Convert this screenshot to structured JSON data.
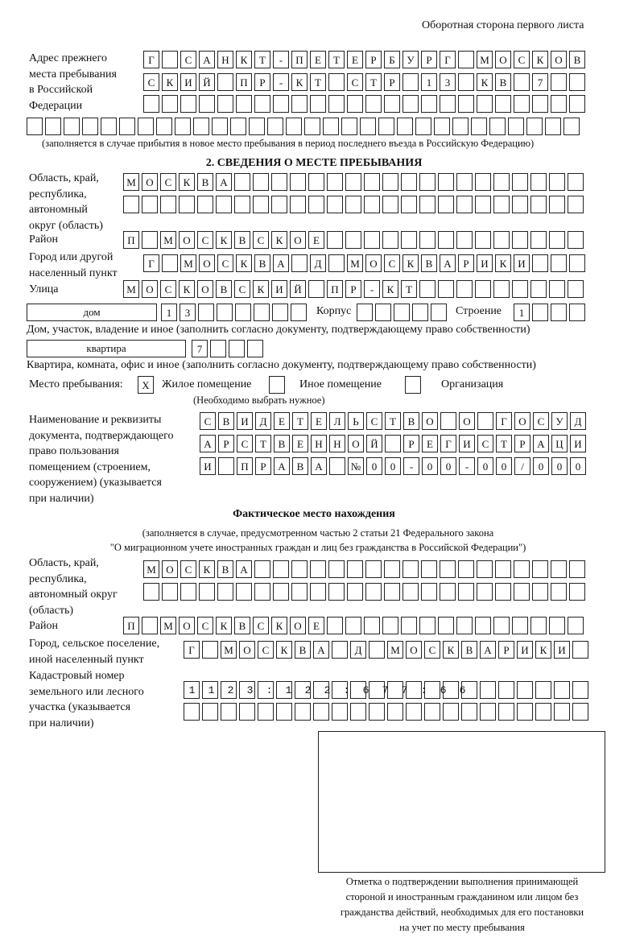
{
  "header": {
    "page_side": "Оборотная сторона первого листа"
  },
  "prev_address": {
    "label": [
      "Адрес прежнего",
      "места пребывания",
      "в Российской",
      "Федерации"
    ],
    "rows": [
      "Г САНКТ-ПЕТЕРБУРГ МОСКОВ",
      "СКИЙ ПР-КТ СТР 13 КВ 7  ",
      "                        ",
      "                              "
    ],
    "note": "(заполняется в случае прибытия в новое место пребывания в период последнего въезда в Российскую Федерацию)"
  },
  "section2": {
    "title": "2. СВЕДЕНИЯ О МЕСТЕ ПРЕБЫВАНИЯ",
    "region_label": [
      "Область, край,",
      "республика,",
      "автономный",
      "округ (область)"
    ],
    "region_rows": [
      "МОСКВА                   ",
      "                         "
    ],
    "district_label": "Район",
    "district_row": "П МОСКВСКОЕ              ",
    "city_label": [
      "Город или другой",
      "населенный пункт"
    ],
    "city_row": "Г МОСКВА Д МОСКВАРИКИ   ",
    "street_label": "Улица",
    "street_row": "МОСКОВСКИЙ ПР-КТ         ",
    "house": {
      "type": "дом",
      "number_row": "13      ",
      "korpus_label": "Корпус",
      "korpus_row": "     ",
      "stroenie_label": "Строение",
      "stroenie_row": "1   ",
      "note": "Дом, участок, владение и иное (заполнить согласно документу, подтверждающему право собственности)"
    },
    "apartment": {
      "type": "квартира",
      "number_row": "7   ",
      "note": "Квартира, комната, офис и иное (заполнить согласно документу, подтверждающему право собственности)"
    },
    "stay_place": {
      "label": "Место пребывания:",
      "options": [
        {
          "label": "Жилое помещение",
          "mark": "X",
          "checked": true
        },
        {
          "label": "Иное помещение",
          "mark": "",
          "checked": false
        },
        {
          "label": "Организация",
          "mark": "",
          "checked": false
        }
      ],
      "note": "(Необходимо выбрать нужное)"
    },
    "document_label": [
      "Наименование и реквизиты",
      "документа, подтверждающего",
      "право пользования",
      "помещением (строением,",
      "сооружением) (указывается",
      "при наличии)"
    ],
    "document_rows": [
      "СВИДЕТЕЛЬСТВО О ГОСУД",
      "АРСТВЕННОЙ РЕГИСТРАЦИ",
      "И ПРАВА №00-00-00/000"
    ]
  },
  "actual": {
    "title": "Фактическое место нахождения",
    "note": [
      "(заполняется в случае, предусмотренном частью 2 статьи 21 Федерального закона",
      "\"О миграционном учете иностранных граждан и лиц без гражданства в Российской Федерации\")"
    ],
    "region_label": [
      "Область, край,",
      "республика,",
      "автономный округ",
      "(область)"
    ],
    "region_rows": [
      "МОСКВА                  ",
      "                        "
    ],
    "district_label": "Район",
    "district_row": "П МОСКВСКОЕ              ",
    "city_label": [
      "Город, сельское поселение,",
      "иной населенный пункт"
    ],
    "city_row": "Г МОСКВА Д МОСКВАРИКИ ",
    "cadastral_label": [
      "Кадастровый номер",
      "земельного или лесного",
      "участка (указывается",
      "при наличии)"
    ],
    "cadastral_rows": [
      "1123:122:677:66       ",
      "                      "
    ]
  },
  "stamp": {
    "caption": [
      "Отметка о подтверждении выполнения принимающей",
      "стороной и иностранным гражданином или лицом без",
      "гражданства действий, необходимых для его постановки",
      "на учет по месту пребывания"
    ]
  }
}
